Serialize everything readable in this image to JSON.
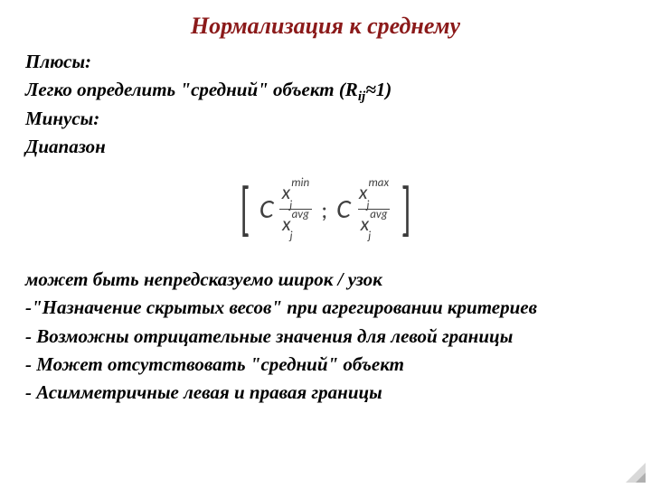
{
  "title": {
    "text": "Нормализация к среднему",
    "color": "#8b1a1a",
    "fontsize": 26
  },
  "body": {
    "color": "#000000",
    "fontsize": 21
  },
  "lines": {
    "pros_label": "Плюсы:",
    "pros_1_prefix": "Легко определить \"средний\" объект (R",
    "pros_1_sub": "ij",
    "pros_1_suffix": "≈1)",
    "cons_label": "Минусы:",
    "cons_range": "Диапазон",
    "after_1": "может быть непредсказуемо широк / узок",
    "after_2": "-\"Назначение скрытых весов\"  при агрегировании критериев",
    "after_3": "- Возможны отрицательные значения для левой границы",
    "after_4": "- Может отсутствовать \"средний\" объект",
    "after_5": "- Асимметричные левая и правая границы"
  },
  "formula": {
    "C": "C",
    "x": "x",
    "j": "j",
    "min": "min",
    "max": "max",
    "avg": "avg",
    "color": "#404040",
    "font": "Calibri"
  }
}
